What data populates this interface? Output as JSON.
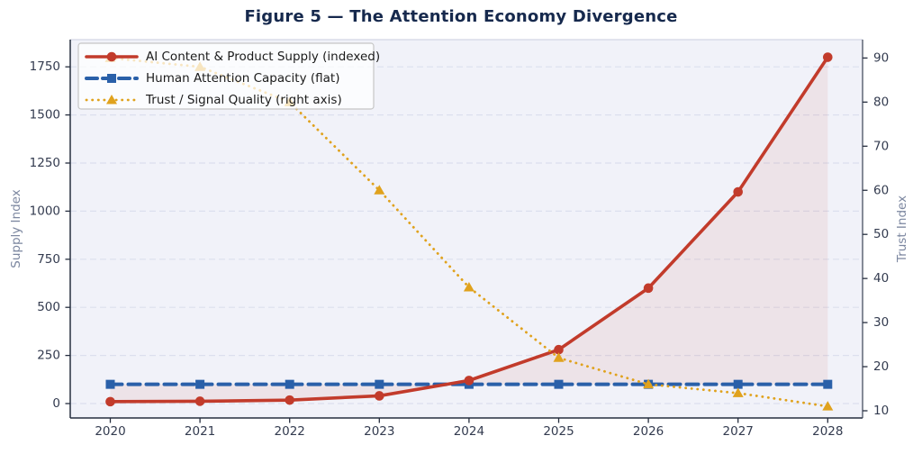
{
  "chart_data": {
    "type": "line",
    "title": "Figure 5 — The Attention Economy Divergence",
    "x": [
      2020,
      2021,
      2022,
      2023,
      2024,
      2025,
      2026,
      2027,
      2028
    ],
    "series": [
      {
        "name": "AI Content & Product Supply (indexed)",
        "axis": "left",
        "values": [
          10,
          12,
          18,
          40,
          120,
          280,
          600,
          1100,
          1800
        ],
        "color": "#c23b2b",
        "style": "solid",
        "marker": "circle"
      },
      {
        "name": "Human Attention Capacity (flat)",
        "axis": "left",
        "values": [
          100,
          100,
          100,
          100,
          100,
          100,
          100,
          100,
          100
        ],
        "color": "#2a60a9",
        "style": "dashed",
        "marker": "square"
      },
      {
        "name": "Trust / Signal Quality (right axis)",
        "axis": "right",
        "values": [
          90,
          88,
          80,
          60,
          38,
          22,
          16,
          14,
          11
        ],
        "color": "#e0a21d",
        "style": "dotted",
        "marker": "triangle"
      }
    ],
    "left_axis": {
      "label": "Supply Index",
      "ticks": [
        0,
        250,
        500,
        750,
        1000,
        1250,
        1500,
        1750
      ],
      "range": [
        0,
        1750
      ]
    },
    "right_axis": {
      "label": "Trust Index",
      "ticks": [
        10,
        20,
        30,
        40,
        50,
        60,
        70,
        80,
        90
      ],
      "range": [
        10,
        90
      ]
    },
    "x_axis": {
      "tick_labels": [
        "2020",
        "2021",
        "2022",
        "2023",
        "2024",
        "2025",
        "2026",
        "2027",
        "2028"
      ]
    },
    "legend_position": "upper left",
    "grid": "horizontal dashed",
    "fill_between": {
      "between": [
        "AI Content & Product Supply (indexed)",
        "Human Attention Capacity (flat)"
      ],
      "color": "rgba(192,57,43,0.08)"
    },
    "colors": {
      "plot_background": "#f1f2f9",
      "gridline": "#dcdfee",
      "title_text": "#16294d",
      "tick_text": "#333b4f",
      "axis_label_text": "#7c87a0",
      "spine": "#262e3f"
    }
  }
}
